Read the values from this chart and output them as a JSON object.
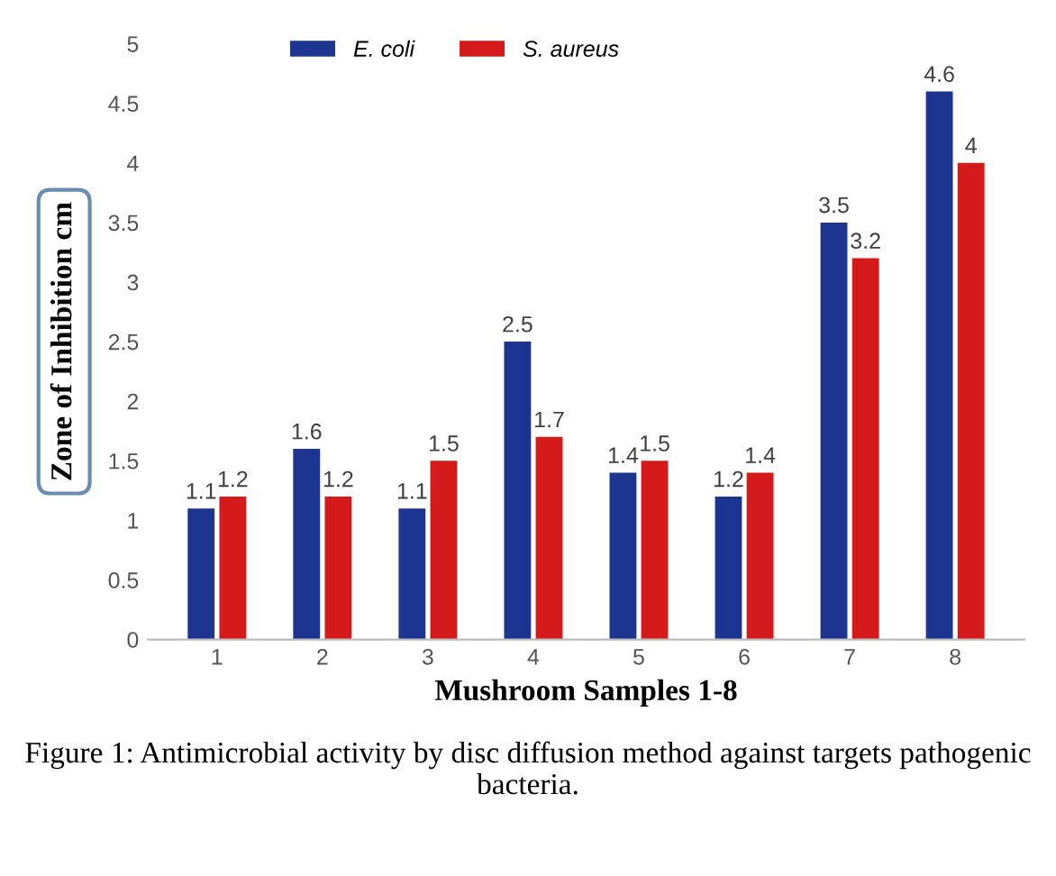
{
  "chart_data": {
    "type": "bar",
    "xlabel": "Mushroom Samples 1-8",
    "ylabel": "Zone of Inhibition cm",
    "categories": [
      "1",
      "2",
      "3",
      "4",
      "5",
      "6",
      "7",
      "8"
    ],
    "series": [
      {
        "name": "E. coli",
        "color": "#1c3590",
        "values": [
          1.1,
          1.6,
          1.1,
          2.5,
          1.4,
          1.2,
          3.5,
          4.6
        ]
      },
      {
        "name": "S. aureus",
        "color": "#d41a1a",
        "values": [
          1.2,
          1.2,
          1.5,
          1.7,
          1.5,
          1.4,
          3.2,
          4
        ]
      }
    ],
    "ylim": [
      0,
      5
    ],
    "yticks": [
      0,
      0.5,
      1,
      1.5,
      2,
      2.5,
      3,
      3.5,
      4,
      4.5,
      5
    ],
    "data_labels": true,
    "grid": false,
    "legend": "top",
    "annotations": [
      "Figure 1: Antimicrobial activity by disc diffusion method against targets pathogenic bacteria."
    ]
  }
}
